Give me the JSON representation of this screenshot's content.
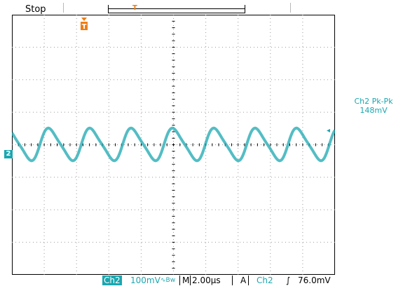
{
  "status": {
    "label": "Stop"
  },
  "trigger_marker": {
    "label": "T"
  },
  "record_marker": {
    "label": "T"
  },
  "measurement": {
    "name": "Ch2 Pk-Pk",
    "value": "148mV"
  },
  "channel_marker": {
    "label": "2"
  },
  "bottom_bar": {
    "channel_box": "Ch2",
    "volts_div": "100mV",
    "bw_icon": "∿Bw",
    "timebase_prefix": "M",
    "timebase": "2.00µs",
    "trigger_source_prefix": "A",
    "trigger_source": "Ch2",
    "slope_glyph": "∫",
    "trigger_level": "76.0mV"
  },
  "colors": {
    "channel2": "#1aa7b0",
    "trigger": "#ef7d14"
  }
}
